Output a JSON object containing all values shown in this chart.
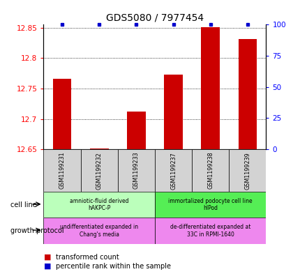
{
  "title": "GDS5080 / 7977454",
  "samples": [
    "GSM1199231",
    "GSM1199232",
    "GSM1199233",
    "GSM1199237",
    "GSM1199238",
    "GSM1199239"
  ],
  "transformed_counts": [
    12.766,
    12.651,
    12.712,
    12.773,
    12.851,
    12.831
  ],
  "percentile_pcts": [
    100,
    100,
    100,
    100,
    100,
    100
  ],
  "ylim": [
    12.65,
    12.855
  ],
  "yticks_left": [
    12.65,
    12.7,
    12.75,
    12.8,
    12.85
  ],
  "yticks_right": [
    0,
    25,
    50,
    75,
    100
  ],
  "bar_color": "#cc0000",
  "marker_color": "#0000cc",
  "bar_width": 0.5,
  "cell_line_groups": [
    {
      "label": "amniotic-fluid derived\nhAKPC-P",
      "color": "#bbffbb",
      "start": 0,
      "end": 3
    },
    {
      "label": "immortalized podocyte cell line\nhIPod",
      "color": "#55ee55",
      "start": 3,
      "end": 6
    }
  ],
  "growth_protocol_groups": [
    {
      "label": "undifferentiated expanded in\nChang's media",
      "color": "#ee88ee",
      "start": 0,
      "end": 3
    },
    {
      "label": "de-differentiated expanded at\n33C in RPMI-1640",
      "color": "#ee88ee",
      "start": 3,
      "end": 6
    }
  ],
  "legend_items": [
    {
      "label": "transformed count",
      "color": "#cc0000"
    },
    {
      "label": "percentile rank within the sample",
      "color": "#0000cc"
    }
  ]
}
